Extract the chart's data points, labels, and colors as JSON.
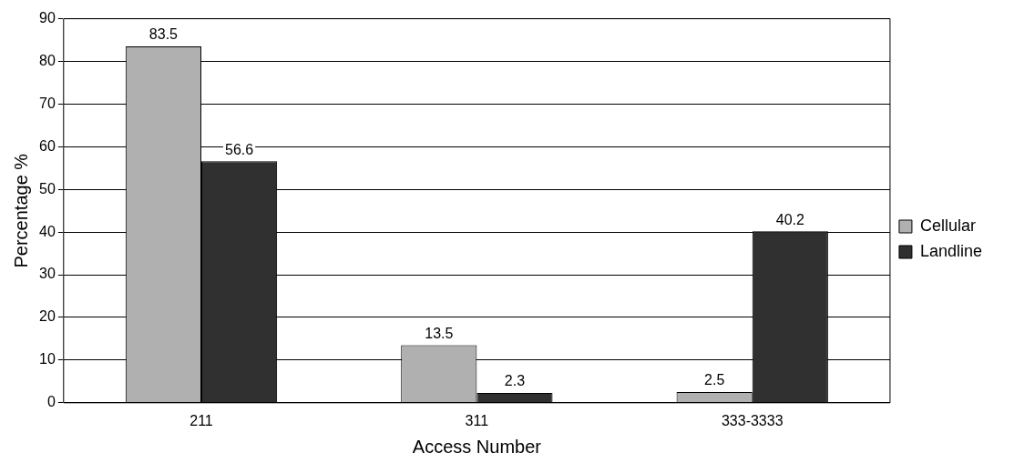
{
  "chart_data": {
    "type": "bar",
    "xlabel": "Access Number",
    "ylabel": "Percentage %",
    "categories": [
      "211",
      "311",
      "333-3333"
    ],
    "series": [
      {
        "name": "Cellular",
        "color": "#b0b0b0",
        "values": [
          83.5,
          13.5,
          2.5
        ]
      },
      {
        "name": "Landline",
        "color": "#303030",
        "values": [
          56.6,
          2.3,
          40.2
        ]
      }
    ],
    "ylim": [
      0,
      90
    ],
    "yticks": [
      0,
      10,
      20,
      30,
      40,
      50,
      60,
      70,
      80,
      90
    ],
    "grid": "y",
    "legend": "right",
    "data_labels": true
  }
}
